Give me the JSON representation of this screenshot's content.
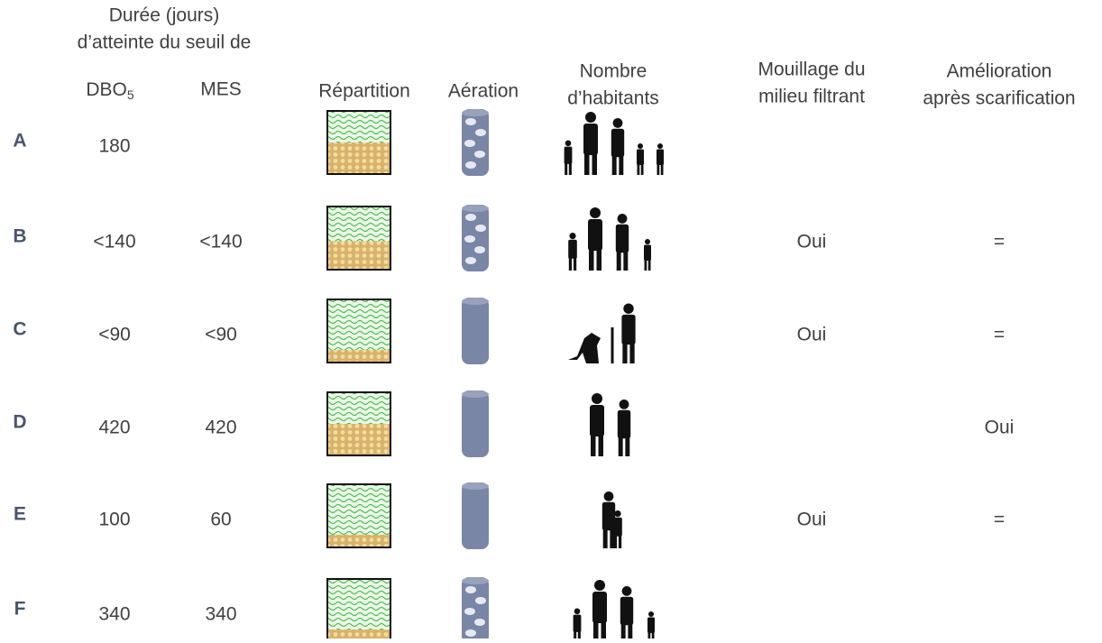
{
  "header": {
    "duration_line1": "Durée (jours)",
    "duration_line2": "d’atteinte du seuil de",
    "dbo": "DBO",
    "dbo_sub": "5",
    "mes": "MES",
    "repartition": "Répartition",
    "aeration": "Aération",
    "habitants_line1": "Nombre",
    "habitants_line2": "d’habitants",
    "mouillage_line1": "Mouillage du",
    "mouillage_line2": "milieu filtrant",
    "amelioration_line1": "Amélioration",
    "amelioration_line2": "après scarification"
  },
  "rows": [
    {
      "id": "A",
      "dbo": "180",
      "mes": null,
      "mouillage": null,
      "amelioration": null
    },
    {
      "id": "B",
      "dbo": "<140",
      "mes": "<140",
      "mouillage": "Oui",
      "amelioration": "="
    },
    {
      "id": "C",
      "dbo": "<90",
      "mes": "<90",
      "mouillage": "Oui",
      "amelioration": "="
    },
    {
      "id": "D",
      "dbo": "420",
      "mes": "420",
      "mouillage": null,
      "amelioration": "Oui"
    },
    {
      "id": "E",
      "dbo": "100",
      "mes": "60",
      "mouillage": "Oui",
      "amelioration": "="
    },
    {
      "id": "F",
      "dbo": "340",
      "mes": "340",
      "mouillage": null,
      "amelioration": null
    }
  ]
}
